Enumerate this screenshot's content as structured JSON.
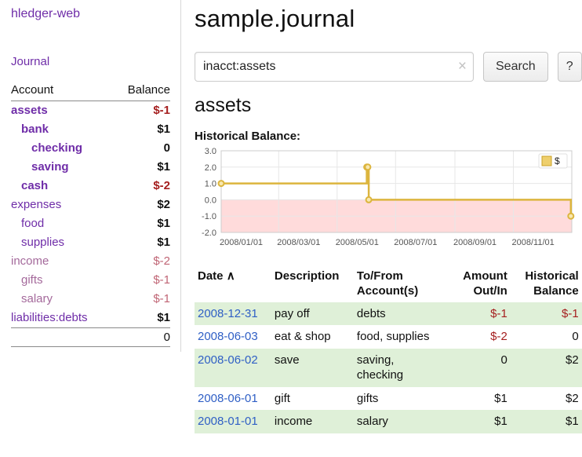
{
  "app": {
    "accent_purple": "#6f2da8",
    "link_blue": "#2f5fc5",
    "negative_red": "#a51f1f",
    "stripe_green": "#dff0d8"
  },
  "sidebar": {
    "app_title": "hledger-web",
    "journal_link": "Journal",
    "accounts": {
      "header_account": "Account",
      "header_balance": "Balance",
      "rows": [
        {
          "name": "assets",
          "balance": "$-1",
          "indent": 0,
          "bold": true,
          "negative": true,
          "muted": false
        },
        {
          "name": "bank",
          "balance": "$1",
          "indent": 1,
          "bold": true,
          "negative": false,
          "muted": false
        },
        {
          "name": "checking",
          "balance": "0",
          "indent": 2,
          "bold": true,
          "negative": false,
          "muted": false
        },
        {
          "name": "saving",
          "balance": "$1",
          "indent": 2,
          "bold": true,
          "negative": false,
          "muted": false
        },
        {
          "name": "cash",
          "balance": "$-2",
          "indent": 1,
          "bold": true,
          "negative": true,
          "muted": false
        },
        {
          "name": "expenses",
          "balance": "$2",
          "indent": 0,
          "bold": false,
          "negative": false,
          "muted": false
        },
        {
          "name": "food",
          "balance": "$1",
          "indent": 1,
          "bold": false,
          "negative": false,
          "muted": false
        },
        {
          "name": "supplies",
          "balance": "$1",
          "indent": 1,
          "bold": false,
          "negative": false,
          "muted": false
        },
        {
          "name": "income",
          "balance": "$-2",
          "indent": 0,
          "bold": false,
          "negative": true,
          "muted": true
        },
        {
          "name": "gifts",
          "balance": "$-1",
          "indent": 1,
          "bold": false,
          "negative": true,
          "muted": true
        },
        {
          "name": "salary",
          "balance": "$-1",
          "indent": 1,
          "bold": false,
          "negative": true,
          "muted": true
        },
        {
          "name": "liabilities:debts",
          "balance": "$1",
          "indent": 0,
          "bold": false,
          "negative": false,
          "muted": false
        }
      ],
      "total": "0"
    }
  },
  "header": {
    "title": "sample.journal"
  },
  "search": {
    "query": "inacct:assets",
    "clear_icon": "×",
    "search_button": "Search",
    "help_button": "?"
  },
  "content": {
    "account_heading": "assets",
    "chart_heading": "Historical Balance:"
  },
  "chart_data": {
    "type": "line",
    "step": true,
    "title": "Historical Balance",
    "series": [
      {
        "name": "$",
        "points": [
          [
            "2008-01-01",
            1
          ],
          [
            "2008-06-01",
            2
          ],
          [
            "2008-06-02",
            2
          ],
          [
            "2008-06-03",
            0
          ],
          [
            "2008-12-31",
            -1
          ]
        ]
      }
    ],
    "x_domain": [
      "2008-01-01",
      "2009-01-01"
    ],
    "ylim": [
      -2,
      3
    ],
    "y_ticks": [
      3,
      2,
      1,
      0,
      -1,
      -2
    ],
    "x_ticks": [
      {
        "date": "2008-01-01",
        "label": "2008/01/01"
      },
      {
        "date": "2008-03-01",
        "label": "2008/03/01"
      },
      {
        "date": "2008-05-01",
        "label": "2008/05/01"
      },
      {
        "date": "2008-07-01",
        "label": "2008/07/01"
      },
      {
        "date": "2008-09-01",
        "label": "2008/09/01"
      },
      {
        "date": "2008-11-01",
        "label": "2008/11/01"
      }
    ],
    "legend": {
      "label": "$",
      "position": "top-right"
    },
    "grid": true,
    "colors": {
      "line": "#dcb53e",
      "marker_fill": "#f8e8b0",
      "negative_region": "#ffdbdb",
      "grid": "#e7e7e7",
      "border": "#cccccc"
    }
  },
  "register": {
    "headers": {
      "date": "Date",
      "sort_indicator": "∧",
      "description": "Description",
      "tofrom": "To/From Account(s)",
      "amount": "Amount Out/In",
      "balance": "Historical Balance"
    },
    "rows": [
      {
        "date": "2008-12-31",
        "description": "pay off",
        "tofrom": "debts",
        "amount": "$-1",
        "balance": "$-1",
        "amount_negative": true,
        "balance_negative": true
      },
      {
        "date": "2008-06-03",
        "description": "eat & shop",
        "tofrom": "food, supplies",
        "amount": "$-2",
        "balance": "0",
        "amount_negative": true,
        "balance_negative": false
      },
      {
        "date": "2008-06-02",
        "description": "save",
        "tofrom": "saving, checking",
        "amount": "0",
        "balance": "$2",
        "amount_negative": false,
        "balance_negative": false
      },
      {
        "date": "2008-06-01",
        "description": "gift",
        "tofrom": "gifts",
        "amount": "$1",
        "balance": "$2",
        "amount_negative": false,
        "balance_negative": false
      },
      {
        "date": "2008-01-01",
        "description": "income",
        "tofrom": "salary",
        "amount": "$1",
        "balance": "$1",
        "amount_negative": false,
        "balance_negative": false
      }
    ]
  }
}
